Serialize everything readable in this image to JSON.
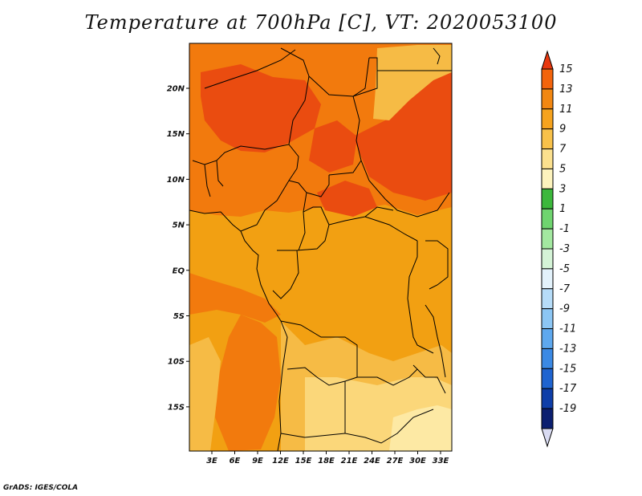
{
  "title": "Temperature at 700hPa [C], VT: 2020053100",
  "footer": "GrADS: IGES/COLA",
  "map": {
    "lat_labels": [
      "20N",
      "15N",
      "10N",
      "5N",
      "EQ",
      "5S",
      "10S",
      "15S"
    ],
    "lon_labels": [
      "3E",
      "6E",
      "9E",
      "12E",
      "15E",
      "18E",
      "21E",
      "24E",
      "27E",
      "30E",
      "33E"
    ],
    "colors": {
      "base": "#f2a012",
      "warm": "#f27a0d",
      "hot": "#ea4c10",
      "mild": "#f6bb45",
      "cool": "#fbd77a",
      "pale": "#fde9a4",
      "border": "#000000"
    }
  },
  "colorbar": {
    "labels": [
      "15",
      "13",
      "11",
      "9",
      "7",
      "5",
      "3",
      "1",
      "-1",
      "-3",
      "-5",
      "-7",
      "-9",
      "-11",
      "-13",
      "-15",
      "-17",
      "-19"
    ],
    "colors": [
      "#e8380f",
      "#f3640c",
      "#f28712",
      "#f6a31e",
      "#f8c14a",
      "#fbe08e",
      "#fdf3bd",
      "#3cb83c",
      "#6fd46f",
      "#a3e8a0",
      "#d4f3d6",
      "#e3f2fb",
      "#b6dcf8",
      "#8cc6f4",
      "#5ea8ee",
      "#3b89e4",
      "#1f64d0",
      "#0e3ea8",
      "#0b1f70",
      "#d9dbf2"
    ]
  }
}
